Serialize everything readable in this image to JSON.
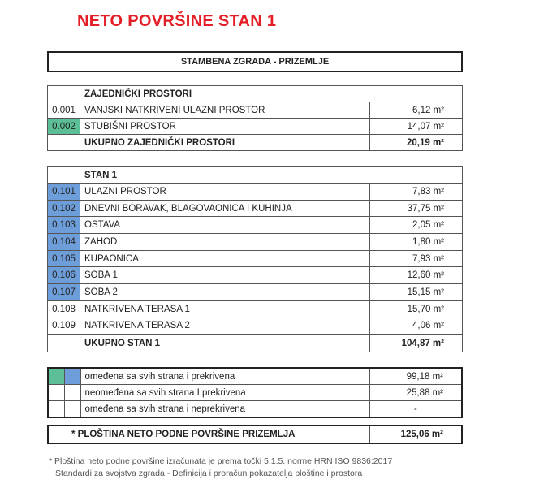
{
  "title": "NETO POVRŠINE STAN 1",
  "building": "STAMBENA ZGRADA - PRIZEMLJE",
  "common": {
    "header": "ZAJEDNIČKI PROSTORI",
    "rows": [
      {
        "code": "0.001",
        "name": "VANJSKI NATKRIVENI ULAZNI PROSTOR",
        "area": "6,12 m²",
        "color": ""
      },
      {
        "code": "0.002",
        "name": "STUBIŠNI PROSTOR",
        "area": "14,07 m²",
        "color": "#5cbf98"
      }
    ],
    "total_label": "UKUPNO ZAJEDNIČKI PROSTORI",
    "total": "20,19 m²"
  },
  "unit": {
    "header": "STAN 1",
    "rows": [
      {
        "code": "0.101",
        "name": "ULAZNI PROSTOR",
        "area": "7,83 m²",
        "color": "#6d9ed9"
      },
      {
        "code": "0.102",
        "name": "DNEVNI BORAVAK, BLAGOVAONICA I KUHINJA",
        "area": "37,75 m²",
        "color": "#6d9ed9"
      },
      {
        "code": "0.103",
        "name": "OSTAVA",
        "area": "2,05 m²",
        "color": "#6d9ed9"
      },
      {
        "code": "0.104",
        "name": "ZAHOD",
        "area": "1,80 m²",
        "color": "#6d9ed9"
      },
      {
        "code": "0.105",
        "name": "KUPAONICA",
        "area": "7,93 m²",
        "color": "#6d9ed9"
      },
      {
        "code": "0.106",
        "name": "SOBA 1",
        "area": "12,60 m²",
        "color": "#6d9ed9"
      },
      {
        "code": "0.107",
        "name": "SOBA 2",
        "area": "15,15 m²",
        "color": "#6d9ed9"
      },
      {
        "code": "0.108",
        "name": "NATKRIVENA TERASA 1",
        "area": "15,70 m²",
        "color": ""
      },
      {
        "code": "0.109",
        "name": "NATKRIVENA TERASA 2",
        "area": "4,06 m²",
        "color": ""
      }
    ],
    "total_label": "UKUPNO STAN 1",
    "total": "104,87 m²"
  },
  "legend": [
    {
      "label": "omeđena sa svih strana i prekrivena",
      "area": "99,18 m²"
    },
    {
      "label": "neomeđena sa svih strana I prekrivena",
      "area": "25,88 m²"
    },
    {
      "label": "omeđena sa svih strana i neprekrivena",
      "area": "-"
    }
  ],
  "grand_total": {
    "label": "* PLOŠTINA NETO PODNE POVRŠINE PRIZEMLJA",
    "area": "125,06 m²"
  },
  "footnote": [
    "* Ploština neto podne površine izračunata je prema točki 5.1.5. norme HRN ISO 9836:2017",
    "Standardi za svojstva zgrada - Definicija i proračun pokazatelja ploštine i prostora"
  ]
}
